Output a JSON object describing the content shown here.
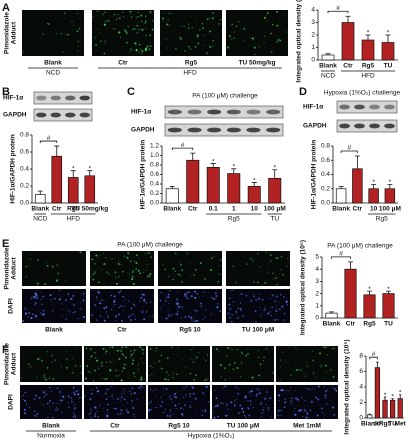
{
  "panels": [
    {
      "label": "A",
      "row_labels": [
        [
          "Pimonidazole",
          "Adduct"
        ]
      ],
      "columns": [
        "Blank",
        "Ctr",
        "Rg5",
        "TU 50mg/kg"
      ],
      "groups": [
        "NCD",
        "HFD",
        null,
        null
      ]
    },
    {
      "label": "B",
      "blots": [
        "HIF-1α",
        "GAPDH"
      ]
    },
    {
      "label": "C",
      "title": "PA (100 μM) challenge",
      "blots": [
        "HIF-1α",
        "GAPDH"
      ]
    },
    {
      "label": "D",
      "title": "Hypoxia (1%O₂) challenge",
      "blots": [
        "HIF-1α",
        "GAPDH"
      ]
    },
    {
      "label": "E",
      "title": "PA (100 μM) challenge",
      "row_labels": [
        [
          "Pimonidazole",
          "Adduct"
        ],
        [
          "DAPI"
        ]
      ],
      "columns": [
        "Blank",
        "Ctr",
        "Rg5 10",
        "TU 100 μM"
      ]
    },
    {
      "label": "F",
      "row_labels": [
        [
          "Pimonidazole",
          "Adduct"
        ],
        [
          "DAPI"
        ]
      ],
      "columns": [
        "Blank",
        "Ctr",
        "Rg5 10",
        "TU 100 μM",
        "Met 1mM"
      ],
      "groups": [
        "Normoxia",
        "Hypoxia (1%O₂)",
        null,
        null,
        null
      ]
    }
  ],
  "chart_data": [
    {
      "type": "bar",
      "ylabel": "Integrated optical density (10⁵)",
      "categories": [
        "Blank",
        "Ctr",
        "Rg5",
        "TU"
      ],
      "values": [
        0.4,
        3.0,
        1.6,
        1.4
      ],
      "errors": [
        0.1,
        0.5,
        0.4,
        0.6
      ],
      "annotations": [
        null,
        "#",
        "*",
        "*"
      ],
      "groups": [
        "NCD",
        "HFD",
        null,
        null
      ],
      "colors": [
        "#ffffff",
        "#b22222",
        "#b22222",
        "#b22222"
      ],
      "ylim": [
        0,
        4
      ],
      "yticks": [
        0,
        1,
        2,
        3,
        4
      ]
    },
    {
      "type": "bar",
      "ylabel": "HIF-1α/GAPDH protein",
      "categories": [
        "Blank",
        "Ctr",
        "Rg5",
        "TU 50mg/kg"
      ],
      "values": [
        0.1,
        0.55,
        0.3,
        0.32
      ],
      "errors": [
        0.04,
        0.12,
        0.08,
        0.06
      ],
      "annotations": [
        null,
        "#",
        "*",
        "*"
      ],
      "groups": [
        "NCD",
        "HFD",
        null,
        null
      ],
      "colors": [
        "#ffffff",
        "#b22222",
        "#b22222",
        "#b22222"
      ],
      "ylim": [
        0,
        0.8
      ],
      "yticks": [
        {
          "value": 0,
          "label": "0.0"
        },
        0.2,
        0.4,
        0.6,
        0.8
      ]
    },
    {
      "type": "bar",
      "ylabel": "HIF-1α/GAPDH protein",
      "categories": [
        "Blank",
        "Ctr",
        "0.1",
        "1",
        "10",
        "100 μM"
      ],
      "values": [
        0.3,
        0.9,
        0.75,
        0.62,
        0.35,
        0.52
      ],
      "errors": [
        0.05,
        0.15,
        0.08,
        0.1,
        0.08,
        0.18
      ],
      "annotations": [
        null,
        "#",
        "*",
        "*",
        "*",
        "*"
      ],
      "groups": [
        null,
        null,
        "Rg5",
        null,
        null,
        "TU"
      ],
      "colors": [
        "#ffffff",
        "#b22222",
        "#b22222",
        "#b22222",
        "#b22222",
        "#b22222"
      ],
      "ylim": [
        0,
        1.2
      ],
      "yticks": [
        {
          "value": 0,
          "label": "0.0"
        },
        0.2,
        0.4,
        0.6,
        0.8,
        {
          "value": 1,
          "label": "1.0"
        },
        1.2
      ]
    },
    {
      "type": "bar",
      "ylabel": "HIF-1α/GAPDH protein",
      "categories": [
        "Blank",
        "Ctr",
        "10",
        "100 μM"
      ],
      "values": [
        0.2,
        0.48,
        0.2,
        0.2
      ],
      "errors": [
        0.03,
        0.18,
        0.06,
        0.06
      ],
      "annotations": [
        null,
        "#",
        "*",
        "*"
      ],
      "groups": [
        null,
        null,
        "Rg5",
        null
      ],
      "colors": [
        "#ffffff",
        "#b22222",
        "#b22222",
        "#b22222"
      ],
      "ylim": [
        0,
        0.8
      ],
      "yticks": [
        {
          "value": 0,
          "label": "0.0"
        },
        0.2,
        0.4,
        0.6,
        0.8
      ]
    },
    {
      "type": "bar",
      "title": "PA (100 μM) challenge",
      "ylabel": "Integrated optical density (10⁵)",
      "categories": [
        "Blank",
        "Ctr",
        "Rg5",
        "TU"
      ],
      "values": [
        0.4,
        4.0,
        1.9,
        2.0
      ],
      "errors": [
        0.1,
        0.6,
        0.3,
        0.2
      ],
      "annotations": [
        null,
        "#",
        "*",
        "*"
      ],
      "colors": [
        "#ffffff",
        "#b22222",
        "#b22222",
        "#b22222"
      ],
      "ylim": [
        0,
        5
      ],
      "yticks": [
        0,
        1,
        2,
        3,
        4,
        5
      ]
    },
    {
      "type": "bar",
      "ylabel": "Integrated optical density (10⁵)",
      "categories": [
        "Blank",
        "ctr",
        "Rg5",
        "TU",
        "Met"
      ],
      "values": [
        0.4,
        6.5,
        2.3,
        2.3,
        2.5
      ],
      "errors": [
        0.1,
        0.7,
        0.4,
        0.2,
        0.5
      ],
      "annotations": [
        null,
        "#",
        "*",
        "*",
        "*"
      ],
      "colors": [
        "#ffffff",
        "#b22222",
        "#b22222",
        "#b22222",
        "#b22222"
      ],
      "ylim": [
        0,
        8
      ],
      "yticks": [
        0,
        2,
        4,
        6,
        8
      ]
    }
  ]
}
